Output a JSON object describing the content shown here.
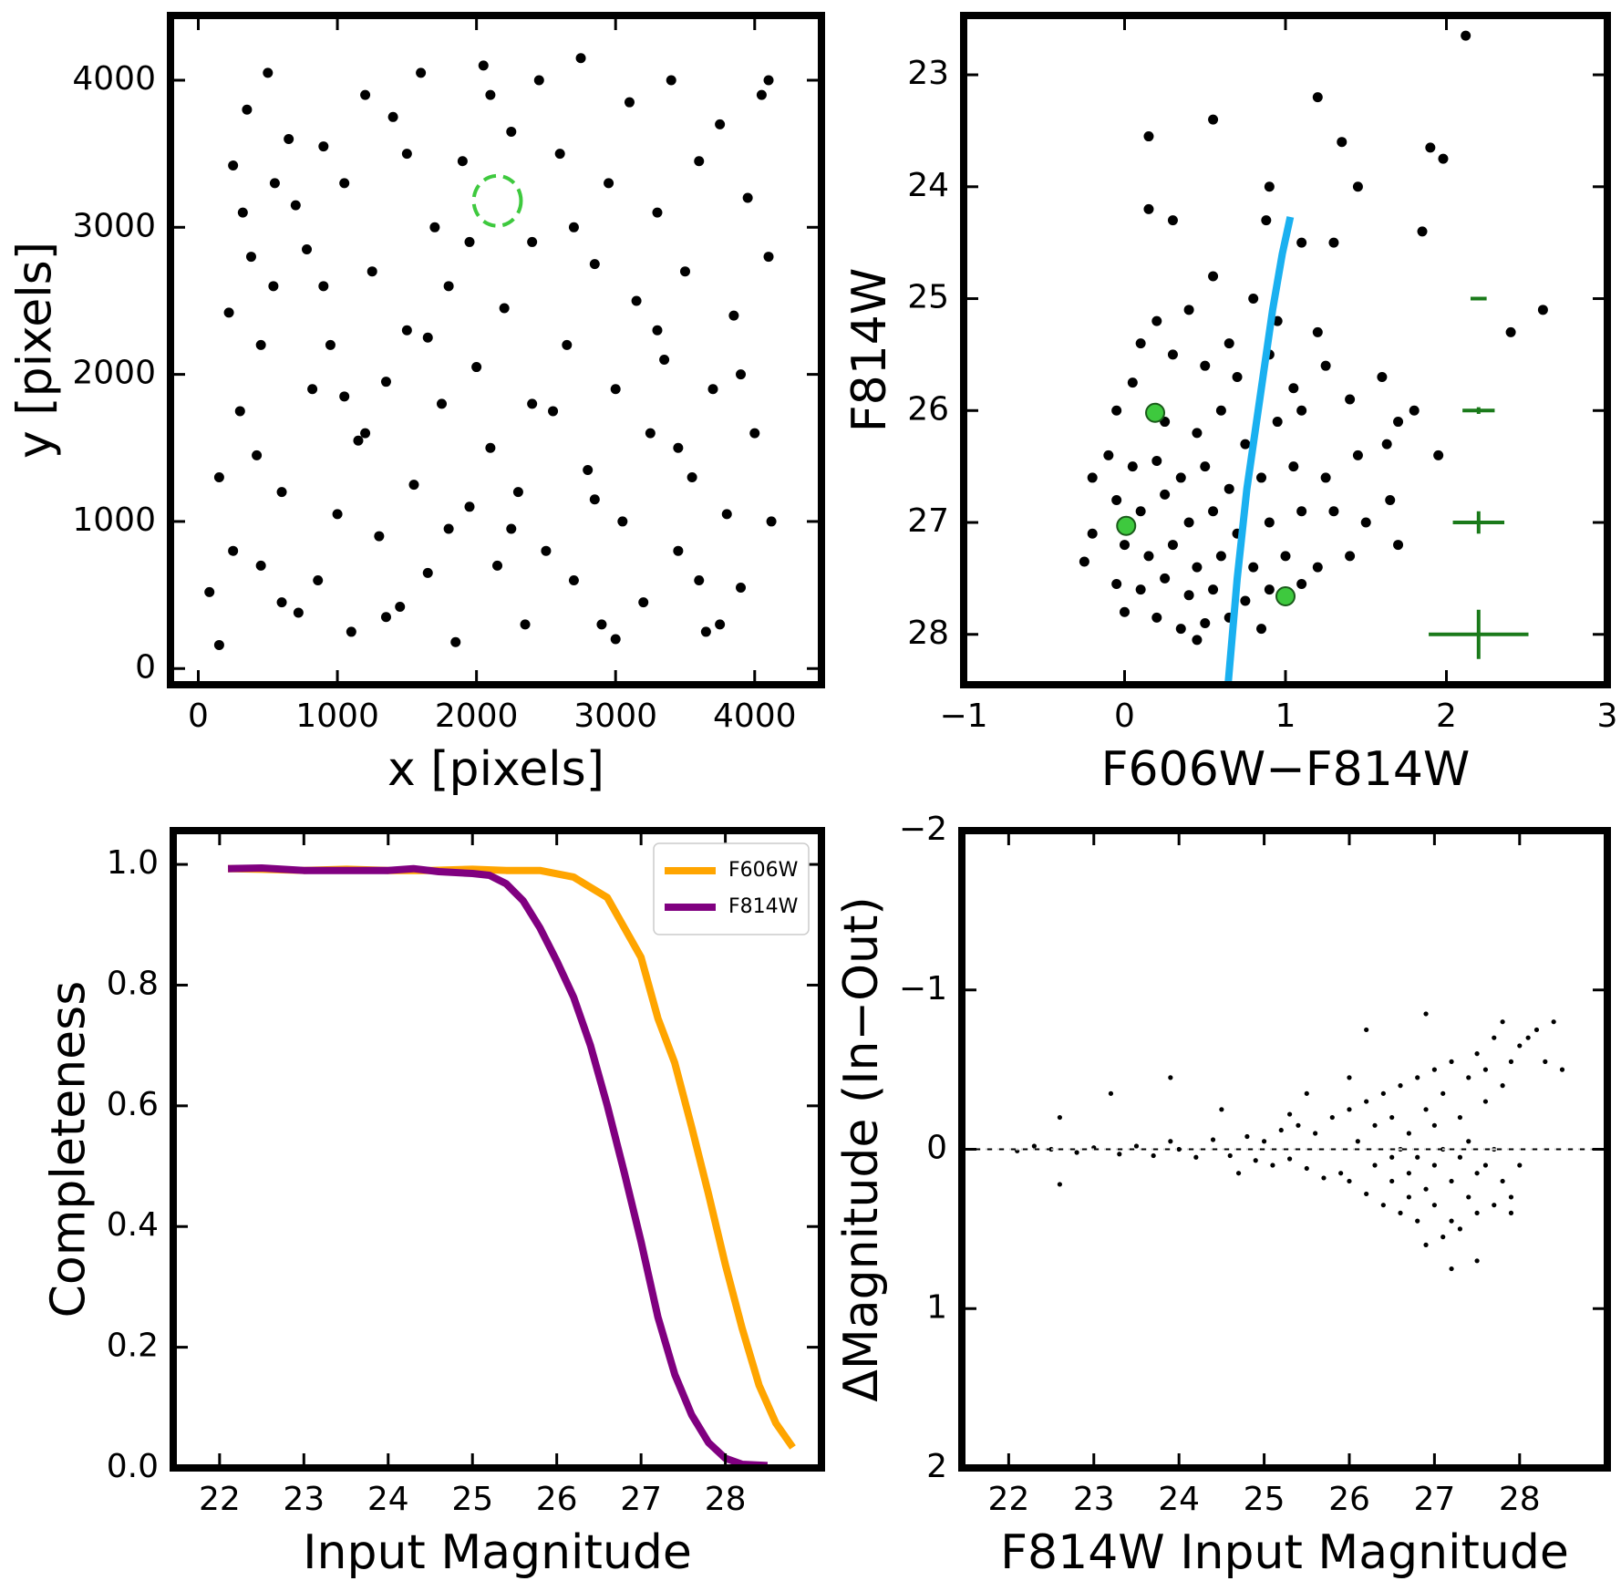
{
  "chart_data": [
    {
      "type": "scatter",
      "xlabel": "x [pixels]",
      "ylabel": "y [pixels]",
      "xlim": [
        -200,
        4480
      ],
      "ylim": [
        -110,
        4440
      ],
      "xticks": [
        0,
        1000,
        2000,
        3000,
        4000
      ],
      "yticks": [
        0,
        1000,
        2000,
        3000,
        4000
      ],
      "series": [
        {
          "type": "scatter",
          "color": "#000000",
          "x": [
            80,
            150,
            220,
            250,
            300,
            320,
            380,
            420,
            450,
            500,
            540,
            600,
            650,
            700,
            720,
            780,
            820,
            860,
            900,
            950,
            1000,
            1050,
            1100,
            1150,
            1200,
            1250,
            1300,
            1350,
            1400,
            1450,
            1500,
            1550,
            1600,
            1650,
            1700,
            1750,
            1800,
            1850,
            1900,
            1950,
            2000,
            2050,
            2100,
            2150,
            2200,
            2250,
            2300,
            2350,
            2400,
            2450,
            2500,
            2550,
            2600,
            2650,
            2700,
            2750,
            2800,
            2850,
            2900,
            2950,
            3000,
            3050,
            3100,
            3150,
            3200,
            3250,
            3300,
            3350,
            3400,
            3450,
            3500,
            3550,
            3600,
            3650,
            3700,
            3750,
            3800,
            3850,
            3900,
            3950,
            4000,
            4050,
            4100,
            4120,
            150,
            350,
            600,
            900,
            1200,
            1500,
            1800,
            2100,
            2400,
            2700,
            3000,
            3300,
            3600,
            3900,
            4100,
            450,
            1050,
            1650,
            2250,
            2850,
            3450,
            3750,
            250,
            550,
            1350,
            1950
          ],
          "values": [
            520,
            160,
            2420,
            3420,
            1750,
            3100,
            2800,
            1450,
            700,
            4050,
            2600,
            1200,
            3600,
            3150,
            380,
            2850,
            1900,
            600,
            3550,
            2200,
            1050,
            3300,
            250,
            1550,
            3900,
            2700,
            900,
            1950,
            3750,
            420,
            2300,
            1250,
            4050,
            650,
            3000,
            1800,
            2600,
            180,
            3450,
            1100,
            2050,
            4100,
            1500,
            700,
            2450,
            3650,
            1200,
            300,
            2900,
            4000,
            800,
            1750,
            3500,
            2200,
            600,
            4150,
            1350,
            2750,
            300,
            3300,
            1900,
            1000,
            3850,
            2500,
            450,
            1600,
            3100,
            2100,
            4000,
            800,
            2700,
            1300,
            3450,
            250,
            1900,
            3700,
            1050,
            2400,
            550,
            3200,
            1600,
            3900,
            2800,
            1000,
            1300,
            3800,
            450,
            2600,
            1600,
            3500,
            950,
            3900,
            1800,
            3000,
            200,
            2300,
            600,
            2000,
            4000,
            2200,
            1850,
            2250,
            950,
            1150,
            1500,
            300,
            800,
            3300,
            350,
            2900
          ]
        }
      ],
      "annotations": [
        {
          "type": "circle",
          "x": 2150,
          "y": 3180,
          "radius": 170,
          "color": "#3ec93e"
        }
      ]
    },
    {
      "type": "scatter",
      "xlabel": "F606W−F814W",
      "ylabel": "F814W",
      "xlim": [
        -1,
        3
      ],
      "ylim": [
        28.45,
        22.47
      ],
      "xticks": [
        {
          "value": -1,
          "label": "−1"
        },
        0,
        1,
        2,
        3
      ],
      "yticks": [
        23,
        24,
        25,
        26,
        27,
        28
      ],
      "series": [
        {
          "type": "scatter",
          "color": "#000000",
          "x": [
            0.15,
            0.55,
            0.9,
            1.2,
            1.35,
            1.9,
            1.98,
            2.12,
            0.15,
            0.3,
            0.88,
            1.45,
            1.85,
            1.1,
            1.3,
            2.6,
            2.4,
            0.55,
            0.8,
            0.2,
            0.4,
            0.65,
            0.95,
            1.2,
            0.1,
            0.3,
            0.5,
            0.7,
            0.9,
            1.05,
            1.25,
            0.05,
            -0.05,
            0.25,
            0.45,
            0.6,
            0.75,
            0.95,
            1.1,
            1.4,
            1.7,
            1.6,
            -0.1,
            0.05,
            0.2,
            0.35,
            0.5,
            0.65,
            0.85,
            1.05,
            1.25,
            1.45,
            1.63,
            -0.2,
            -0.05,
            0.1,
            0.25,
            0.4,
            0.55,
            0.7,
            0.9,
            1.1,
            1.3,
            1.5,
            -0.2,
            0.0,
            0.15,
            0.3,
            0.45,
            0.6,
            0.8,
            1.0,
            1.2,
            1.4,
            -0.25,
            -0.05,
            0.1,
            0.25,
            0.4,
            0.55,
            0.75,
            0.9,
            1.1,
            0.0,
            0.2,
            0.35,
            0.5,
            0.65,
            0.85,
            0.45,
            1.65,
            1.7,
            1.95,
            1.8
          ],
          "values": [
            23.55,
            23.4,
            24.0,
            23.2,
            23.6,
            23.65,
            23.75,
            22.65,
            24.2,
            24.3,
            24.3,
            24.0,
            24.4,
            24.5,
            24.5,
            25.1,
            25.3,
            24.8,
            25.0,
            25.2,
            25.1,
            25.4,
            25.2,
            25.3,
            25.4,
            25.5,
            25.6,
            25.7,
            25.5,
            25.8,
            25.6,
            25.75,
            26.0,
            26.1,
            26.2,
            26.0,
            26.3,
            26.1,
            26.0,
            25.9,
            26.1,
            25.7,
            26.4,
            26.5,
            26.45,
            26.6,
            26.5,
            26.7,
            26.6,
            26.5,
            26.6,
            26.4,
            26.3,
            26.6,
            26.8,
            26.9,
            26.75,
            27.0,
            26.9,
            27.1,
            27.0,
            26.9,
            26.9,
            27.0,
            27.1,
            27.2,
            27.3,
            27.2,
            27.4,
            27.3,
            27.4,
            27.3,
            27.4,
            27.3,
            27.35,
            27.55,
            27.6,
            27.5,
            27.65,
            27.6,
            27.7,
            27.6,
            27.55,
            27.8,
            27.85,
            27.95,
            27.9,
            27.85,
            27.95,
            28.05,
            26.8,
            27.2,
            26.4,
            26.0
          ]
        },
        {
          "type": "line",
          "color": "#1ab0f0",
          "x": [
            0.64,
            0.7,
            0.76,
            0.84,
            0.92,
            0.98,
            1.03
          ],
          "values": [
            28.5,
            27.5,
            26.7,
            25.9,
            25.1,
            24.6,
            24.27
          ]
        },
        {
          "type": "scatter",
          "color": "#3ec93e",
          "edgecolor": "#1a5a1a",
          "x": [
            0.19,
            0.01,
            1.0
          ],
          "values": [
            26.02,
            27.03,
            27.66
          ]
        },
        {
          "type": "errorbar",
          "color": "#1a7a1a",
          "x": [
            2.2,
            2.2,
            2.2,
            2.2
          ],
          "values": [
            25,
            26,
            27,
            28
          ],
          "xerr": [
            0.05,
            0.1,
            0.16,
            0.31
          ],
          "yerr": [
            0.01,
            0.03,
            0.1,
            0.22
          ]
        }
      ]
    },
    {
      "type": "line",
      "xlabel": "Input Magnitude",
      "ylabel": "Completeness",
      "xlim": [
        21.45,
        29.14
      ],
      "ylim": [
        0,
        1.056
      ],
      "xticks": [
        22,
        23,
        24,
        25,
        26,
        27,
        28
      ],
      "yticks": [
        {
          "value": 0,
          "label": "0.0"
        },
        0.2,
        0.4,
        0.6,
        0.8,
        {
          "value": 1,
          "label": "1.0"
        }
      ],
      "legend": "upper right",
      "series": [
        {
          "type": "line",
          "name": "F606W",
          "color": "#ffa500",
          "x": [
            22.1,
            22.5,
            23,
            23.5,
            24,
            24.5,
            25,
            25.4,
            25.8,
            26.2,
            26.6,
            27.0,
            27.2,
            27.4,
            27.6,
            27.8,
            28.0,
            28.2,
            28.4,
            28.6,
            28.8
          ],
          "values": [
            0.993,
            0.992,
            0.99,
            0.992,
            0.99,
            0.99,
            0.992,
            0.99,
            0.99,
            0.979,
            0.945,
            0.846,
            0.745,
            0.671,
            0.565,
            0.454,
            0.337,
            0.231,
            0.137,
            0.074,
            0.034
          ]
        },
        {
          "type": "line",
          "name": "F814W",
          "color": "#800080",
          "x": [
            22.1,
            22.5,
            23,
            23.5,
            24,
            24.3,
            24.6,
            25,
            25.2,
            25.4,
            25.6,
            25.8,
            26.0,
            26.2,
            26.4,
            26.6,
            26.8,
            27.0,
            27.2,
            27.4,
            27.6,
            27.8,
            28.0,
            28.2,
            28.5
          ],
          "values": [
            0.993,
            0.994,
            0.99,
            0.99,
            0.99,
            0.993,
            0.988,
            0.985,
            0.982,
            0.968,
            0.94,
            0.895,
            0.84,
            0.78,
            0.7,
            0.6,
            0.49,
            0.375,
            0.25,
            0.155,
            0.088,
            0.042,
            0.016,
            0.006,
            0.004
          ]
        }
      ]
    },
    {
      "type": "scatter",
      "xlabel": "F814W Input Magnitude",
      "ylabel": "ΔMagnitude (In−Out)",
      "xlim": [
        21.45,
        29.03
      ],
      "ylim": [
        2,
        -2
      ],
      "xticks": [
        22,
        23,
        24,
        25,
        26,
        27,
        28
      ],
      "yticks": [
        {
          "value": -2,
          "label": "−2"
        },
        {
          "value": -1,
          "label": "−1"
        },
        0,
        1,
        2
      ],
      "series": [
        {
          "type": "scatter",
          "color": "#000000",
          "x": [
            22.1,
            22.3,
            22.5,
            22.6,
            22.6,
            22.8,
            23.0,
            23.2,
            23.3,
            23.5,
            23.7,
            23.9,
            24.0,
            24.2,
            24.4,
            24.5,
            24.6,
            24.8,
            24.9,
            25.0,
            25.1,
            25.2,
            25.3,
            25.4,
            25.5,
            25.6,
            25.7,
            25.8,
            25.9,
            26.0,
            26.0,
            26.1,
            26.2,
            26.2,
            26.3,
            26.3,
            26.4,
            26.4,
            26.5,
            26.5,
            26.5,
            26.6,
            26.6,
            26.6,
            26.7,
            26.7,
            26.7,
            26.8,
            26.8,
            26.8,
            26.9,
            26.9,
            26.9,
            27.0,
            27.0,
            27.0,
            27.0,
            27.1,
            27.1,
            27.1,
            27.2,
            27.2,
            27.2,
            27.3,
            27.3,
            27.3,
            27.4,
            27.4,
            27.4,
            27.5,
            27.5,
            27.5,
            27.6,
            27.6,
            27.6,
            27.7,
            27.7,
            27.7,
            27.8,
            27.8,
            27.8,
            27.9,
            27.9,
            28.0,
            28.0,
            28.1,
            28.2,
            28.3,
            28.4,
            28.5,
            23.9,
            25.5,
            26.2,
            27.5,
            26.9,
            26.0,
            24.7,
            25.3,
            27.2,
            27.9
          ],
          "values": [
            0.01,
            -0.02,
            0.0,
            -0.2,
            0.22,
            0.02,
            -0.01,
            -0.35,
            0.03,
            -0.02,
            0.04,
            -0.05,
            0.0,
            0.05,
            -0.06,
            -0.25,
            0.04,
            -0.08,
            0.07,
            -0.05,
            0.1,
            -0.12,
            0.06,
            -0.15,
            0.12,
            -0.1,
            0.18,
            -0.2,
            0.15,
            -0.25,
            0.2,
            -0.05,
            0.28,
            -0.3,
            0.1,
            -0.15,
            0.35,
            -0.35,
            0.05,
            0.2,
            -0.2,
            0.4,
            -0.4,
            0.0,
            0.15,
            -0.1,
            0.3,
            -0.45,
            0.45,
            0.05,
            -0.25,
            0.25,
            0.6,
            -0.5,
            0.1,
            0.35,
            -0.15,
            0.55,
            -0.35,
            0.0,
            0.2,
            -0.55,
            0.45,
            -0.2,
            0.05,
            0.5,
            -0.45,
            0.3,
            -0.05,
            -0.6,
            0.15,
            0.4,
            -0.3,
            0.1,
            -0.5,
            0.35,
            -0.7,
            0.0,
            -0.4,
            0.2,
            -0.8,
            0.3,
            -0.55,
            -0.65,
            0.1,
            -0.7,
            -0.75,
            -0.55,
            -0.8,
            -0.5,
            -0.45,
            -0.35,
            -0.75,
            0.7,
            -0.85,
            -0.45,
            0.15,
            -0.22,
            0.75,
            0.4
          ]
        },
        {
          "type": "hline",
          "color": "#000000",
          "values": [
            0
          ]
        }
      ]
    }
  ]
}
